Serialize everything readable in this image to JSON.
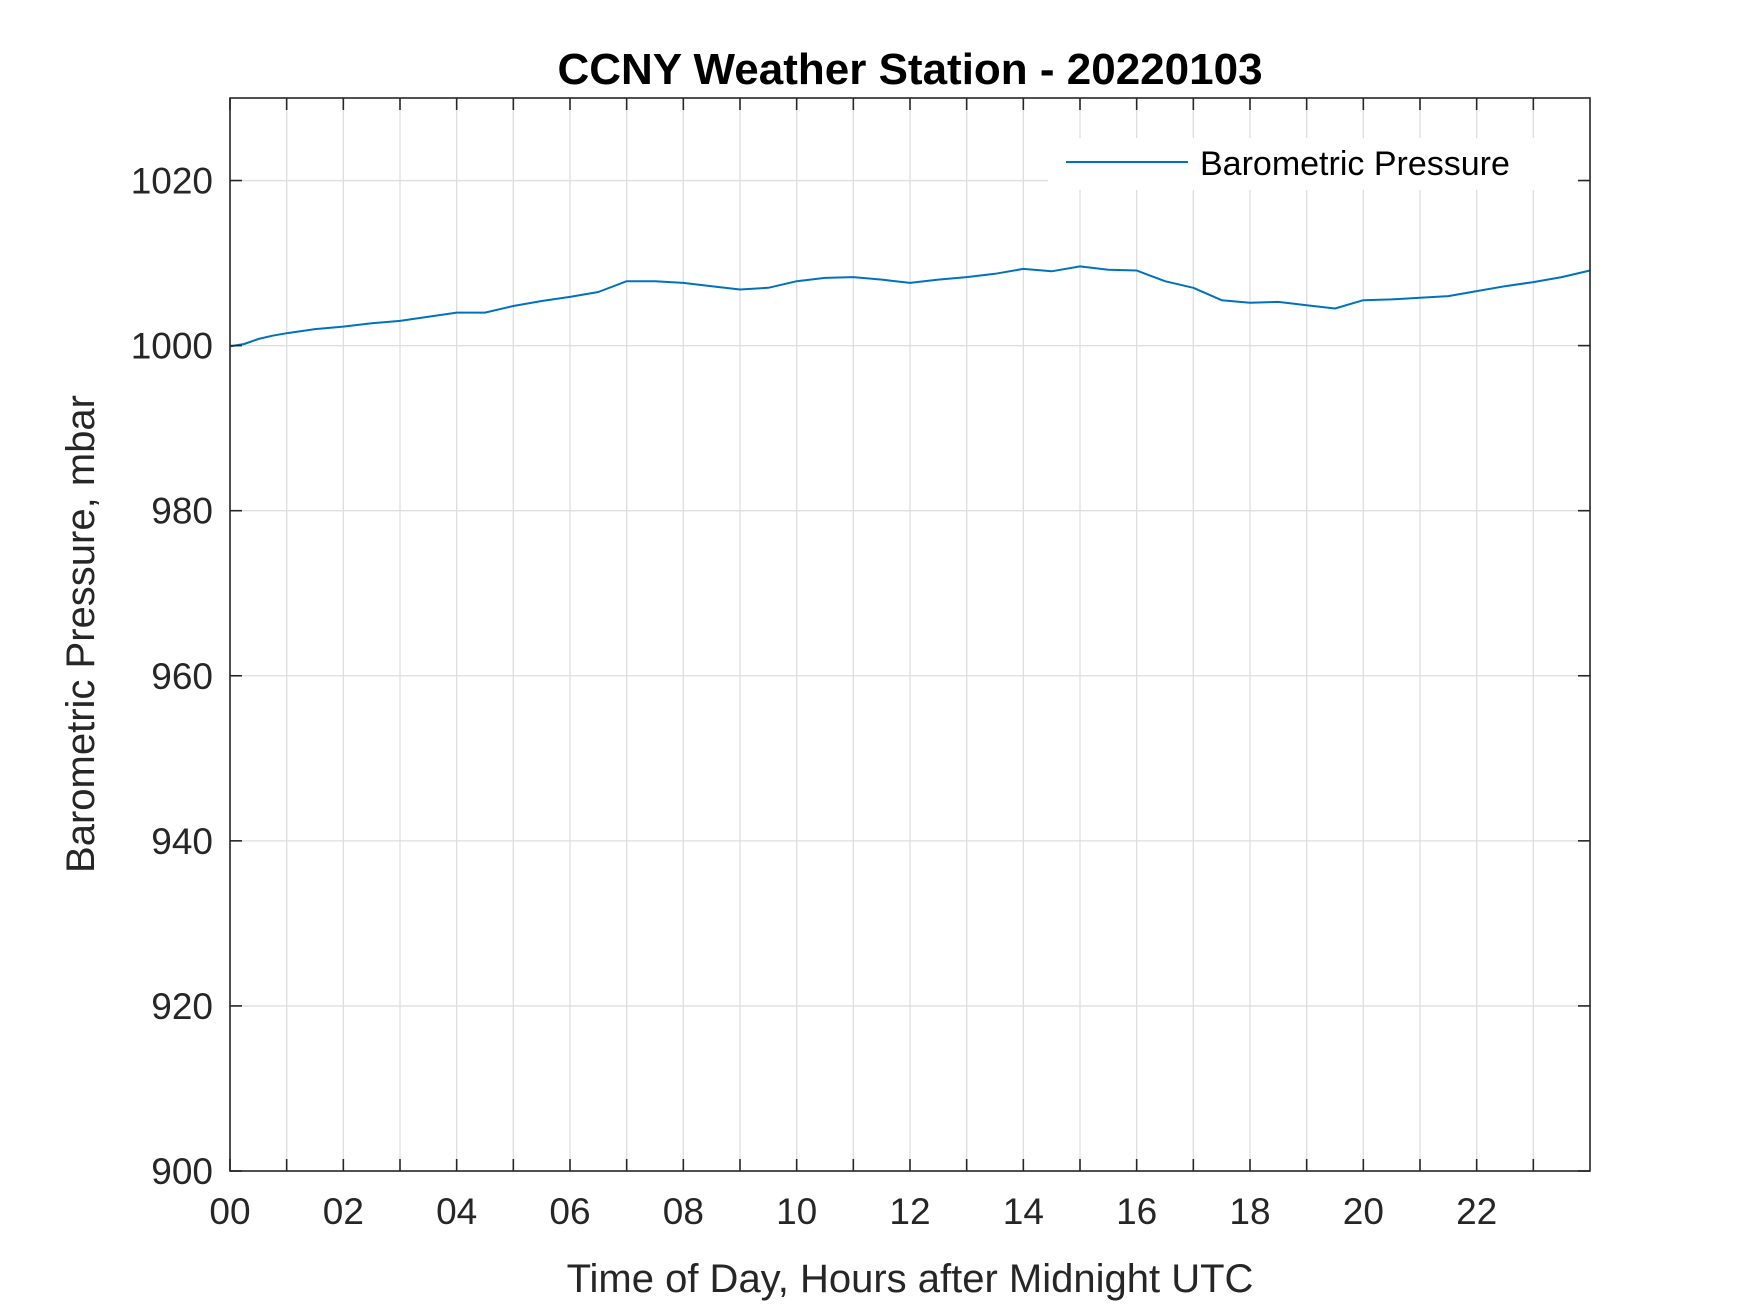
{
  "chart_data": {
    "type": "line",
    "title": "CCNY Weather Station - 20220103",
    "xlabel": "Time of Day, Hours after Midnight UTC",
    "ylabel": "Barometric Pressure, mbar",
    "xlim": [
      0,
      24
    ],
    "ylim": [
      900,
      1030
    ],
    "x_ticks": [
      0,
      2,
      4,
      6,
      8,
      10,
      12,
      14,
      16,
      18,
      20,
      22
    ],
    "x_tick_labels": [
      "00",
      "02",
      "04",
      "06",
      "08",
      "10",
      "12",
      "14",
      "16",
      "18",
      "20",
      "22"
    ],
    "x_minor_ticks": [
      1,
      3,
      5,
      7,
      9,
      11,
      13,
      15,
      17,
      19,
      21,
      23
    ],
    "y_ticks": [
      900,
      920,
      940,
      960,
      980,
      1000,
      1020
    ],
    "y_tick_labels": [
      "900",
      "920",
      "940",
      "960",
      "980",
      "1000",
      "1020"
    ],
    "grid": true,
    "legend": {
      "position": "top-right",
      "entries": [
        "Barometric Pressure"
      ]
    },
    "series": [
      {
        "name": "Barometric Pressure",
        "color": "#0072BD",
        "x": [
          0,
          0.25,
          0.5,
          0.75,
          1,
          1.5,
          2,
          2.5,
          3,
          3.5,
          4,
          4.5,
          5,
          5.5,
          6,
          6.5,
          7,
          7.5,
          8,
          8.5,
          9,
          9.5,
          10,
          10.5,
          11,
          11.5,
          12,
          12.5,
          13,
          13.5,
          14,
          14.5,
          15,
          15.5,
          16,
          16.5,
          17,
          17.5,
          18,
          18.5,
          19,
          19.5,
          20,
          20.5,
          21,
          21.5,
          22,
          22.5,
          23,
          23.5,
          24
        ],
        "y": [
          999.9,
          1000.2,
          1000.8,
          1001.2,
          1001.5,
          1002,
          1002.3,
          1002.7,
          1003,
          1003.5,
          1004,
          1004,
          1004.8,
          1005.4,
          1005.9,
          1006.5,
          1007.8,
          1007.8,
          1007.6,
          1007.2,
          1006.8,
          1007,
          1007.8,
          1008.2,
          1008.3,
          1008,
          1007.6,
          1008,
          1008.3,
          1008.7,
          1009.3,
          1009,
          1009.6,
          1009.2,
          1009.1,
          1007.8,
          1007,
          1005.5,
          1005.2,
          1005.3,
          1004.9,
          1004.5,
          1005.5,
          1005.6,
          1005.8,
          1006,
          1006.6,
          1007.2,
          1007.7,
          1008.3,
          1009.1
        ]
      }
    ]
  }
}
